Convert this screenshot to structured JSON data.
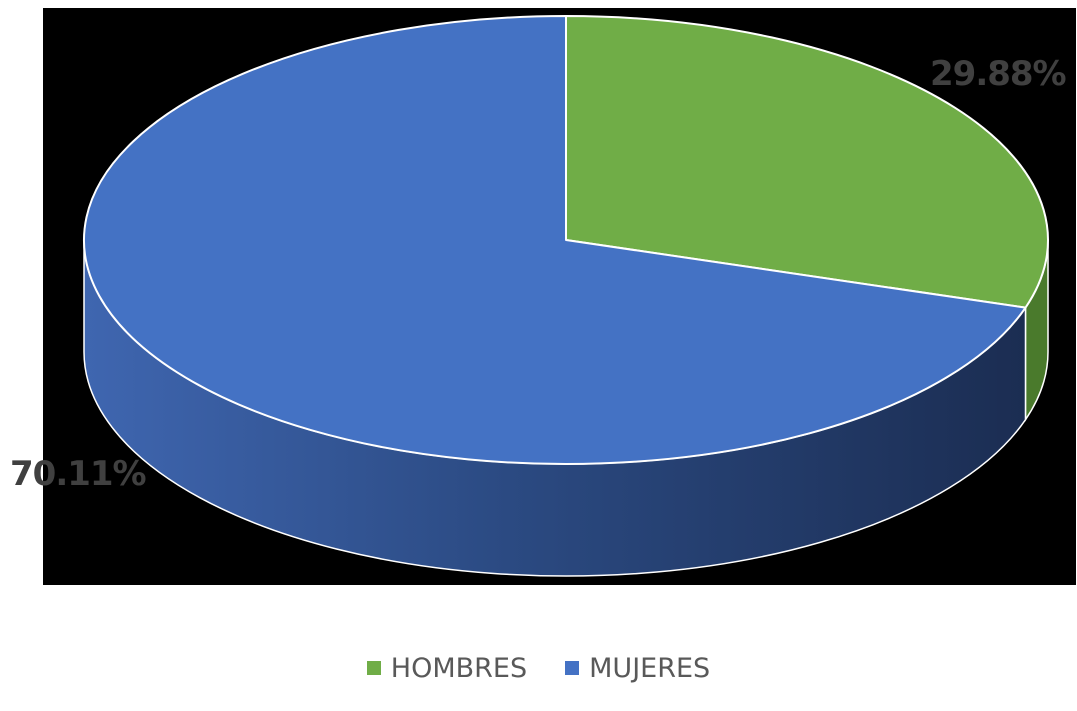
{
  "chart_data": {
    "type": "pie",
    "categories": [
      "HOMBRES",
      "MUJERES"
    ],
    "values": [
      29.88,
      70.11
    ],
    "data_labels": [
      "29.88%",
      "70.11%"
    ],
    "colors": [
      "#70ad47",
      "#4472c4"
    ],
    "side_colors": [
      "#4a7a2c",
      "#1f3560"
    ],
    "plot_background": "#000000",
    "legend_position": "bottom",
    "style": "3d"
  }
}
